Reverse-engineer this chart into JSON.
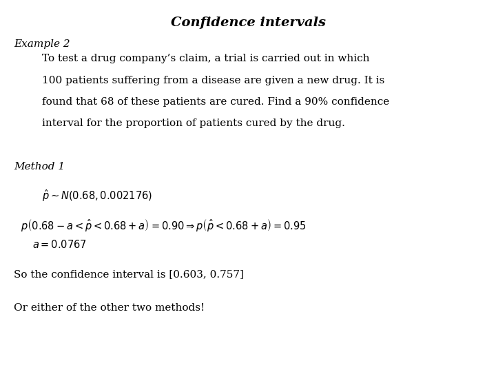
{
  "title": "Confidence intervals",
  "background_color": "#ffffff",
  "text_color": "#000000",
  "example_label": "Example 2",
  "paragraph_line1": "To test a drug company’s claim, a trial is carried out in which",
  "paragraph_line2": "100 patients suffering from a disease are given a new drug. It is",
  "paragraph_line3": "found that 68 of these patients are cured. Find a 90% confidence",
  "paragraph_line4": "interval for the proportion of patients cured by the drug.",
  "method_label": "Method 1",
  "formula1": "$\\hat{p} \\sim N(0.68, 0.002176)$",
  "formula2": "$p\\left(0.68 - a < \\hat{p} < 0.68 + a\\right) = 0.90 \\Rightarrow p\\left(\\hat{p} < 0.68 + a\\right) = 0.95$",
  "formula2_sub": "$a = 0.0767$",
  "conclusion": "So the confidence interval is [0.603, 0.757]",
  "final_line": "Or either of the other two methods!",
  "title_fontsize": 14,
  "font_size_body": 11,
  "font_size_math": 10.5
}
